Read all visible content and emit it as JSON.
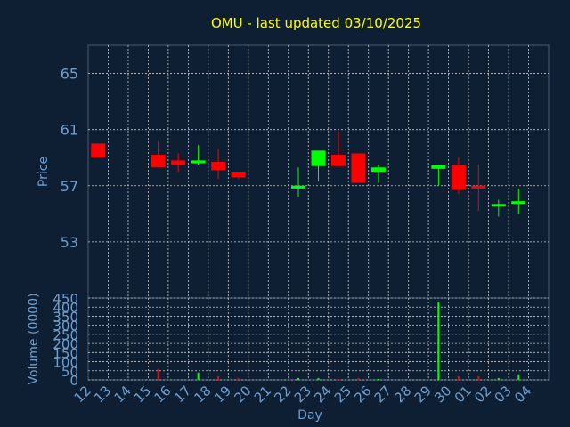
{
  "chart_data": [
    {
      "type": "candlestick",
      "title": "OMU - last updated 03/10/2025",
      "ylabel": "Price",
      "ylim": [
        49,
        67
      ],
      "yticks": [
        "53",
        "57",
        "61",
        "65"
      ],
      "grid": true,
      "up_color": "#00ff00",
      "down_color": "#ff0000",
      "title_color": "#ffff00",
      "axis_label_color": "#6f9fcf",
      "candles": [
        {
          "x": 0,
          "open": 60.0,
          "close": 59.0,
          "high": 60.0,
          "low": 59.0
        },
        {
          "x": 3,
          "open": 59.2,
          "close": 58.3,
          "high": 60.2,
          "low": 58.3
        },
        {
          "x": 4,
          "open": 58.8,
          "close": 58.5,
          "high": 59.3,
          "low": 58.0
        },
        {
          "x": 5,
          "open": 58.6,
          "close": 58.8,
          "high": 59.9,
          "low": 58.5
        },
        {
          "x": 6,
          "open": 58.7,
          "close": 58.1,
          "high": 59.6,
          "low": 57.5
        },
        {
          "x": 7,
          "open": 58.0,
          "close": 57.6,
          "high": 58.0,
          "low": 57.5
        },
        {
          "x": 10,
          "open": 56.8,
          "close": 57.0,
          "high": 58.3,
          "low": 56.2
        },
        {
          "x": 11,
          "open": 58.4,
          "close": 59.5,
          "high": 59.5,
          "low": 57.3
        },
        {
          "x": 12,
          "open": 59.2,
          "close": 58.4,
          "high": 60.9,
          "low": 58.4
        },
        {
          "x": 13,
          "open": 59.3,
          "close": 57.2,
          "high": 59.3,
          "low": 57.2
        },
        {
          "x": 14,
          "open": 58.0,
          "close": 58.3,
          "high": 58.5,
          "low": 57.2
        },
        {
          "x": 17,
          "open": 58.2,
          "close": 58.5,
          "high": 58.5,
          "low": 57.0
        },
        {
          "x": 18,
          "open": 58.5,
          "close": 56.7,
          "high": 59.0,
          "low": 56.4
        },
        {
          "x": 19,
          "open": 57.0,
          "close": 56.8,
          "high": 58.5,
          "low": 55.2
        },
        {
          "x": 20,
          "open": 55.6,
          "close": 55.7,
          "high": 56.0,
          "low": 54.8
        },
        {
          "x": 21,
          "open": 55.8,
          "close": 55.9,
          "high": 56.8,
          "low": 55.0
        }
      ]
    },
    {
      "type": "bar",
      "xlabel": "Day",
      "ylabel": "Volume (0000)",
      "ylim": [
        0,
        450
      ],
      "yticks": [
        "0",
        "50",
        "100",
        "150",
        "200",
        "250",
        "300",
        "350",
        "400",
        "450"
      ],
      "categories": [
        "12",
        "13",
        "14",
        "15",
        "16",
        "17",
        "18",
        "19",
        "20",
        "21",
        "22",
        "23",
        "24",
        "25",
        "26",
        "27",
        "28",
        "29",
        "30",
        "01",
        "02",
        "03",
        "04"
      ],
      "values": [
        0,
        0,
        0,
        60,
        0,
        40,
        20,
        10,
        0,
        0,
        10,
        10,
        5,
        10,
        5,
        0,
        0,
        430,
        20,
        20,
        10,
        30,
        0
      ],
      "bar_colors": [
        "#ff0000",
        "#ff0000",
        "#ff0000",
        "#ff0000",
        "#ff0000",
        "#00ff00",
        "#ff0000",
        "#ff0000",
        "#ff0000",
        "#ff0000",
        "#00ff00",
        "#00ff00",
        "#ff0000",
        "#ff0000",
        "#00ff00",
        "#ff0000",
        "#ff0000",
        "#00ff00",
        "#ff0000",
        "#ff0000",
        "#00ff00",
        "#00ff00",
        "#ff0000"
      ],
      "grid": true
    }
  ]
}
